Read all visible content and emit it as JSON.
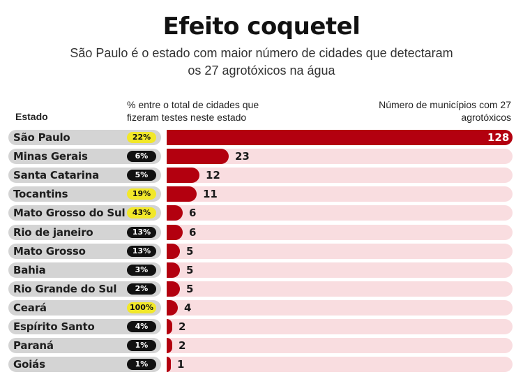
{
  "title": "Efeito coquetel",
  "subtitle": "São Paulo é o estado com maior número de cidades que detectaram os 27 agrotóxicos na água",
  "headers": {
    "state": "Estado",
    "percent": "% entre o total de cidades que fizeram testes neste estado",
    "count": "Número de municípios com 27 agrotóxicos"
  },
  "colors": {
    "bar": "#b3000f",
    "track": "#f9dde0",
    "badge_dark": "#111111",
    "badge_highlight": "#f2e829"
  },
  "chart_data": {
    "type": "bar",
    "orientation": "horizontal",
    "categories": [
      "São Paulo",
      "Minas Gerais",
      "Santa Catarina",
      "Tocantins",
      "Mato Grosso do Sul",
      "Rio de janeiro",
      "Mato Grosso",
      "Bahia",
      "Rio Grande do Sul",
      "Ceará",
      "Espírito Santo",
      "Paraná",
      "Goiás"
    ],
    "values": [
      128,
      23,
      12,
      11,
      6,
      6,
      5,
      5,
      5,
      4,
      2,
      2,
      1
    ],
    "percent_labels": [
      "22%",
      "6%",
      "5%",
      "19%",
      "43%",
      "13%",
      "13%",
      "3%",
      "2%",
      "100%",
      "4%",
      "1%",
      "1%"
    ],
    "percent_highlight": [
      true,
      false,
      false,
      true,
      true,
      false,
      false,
      false,
      false,
      true,
      false,
      false,
      false
    ],
    "xlim": [
      0,
      128
    ]
  }
}
